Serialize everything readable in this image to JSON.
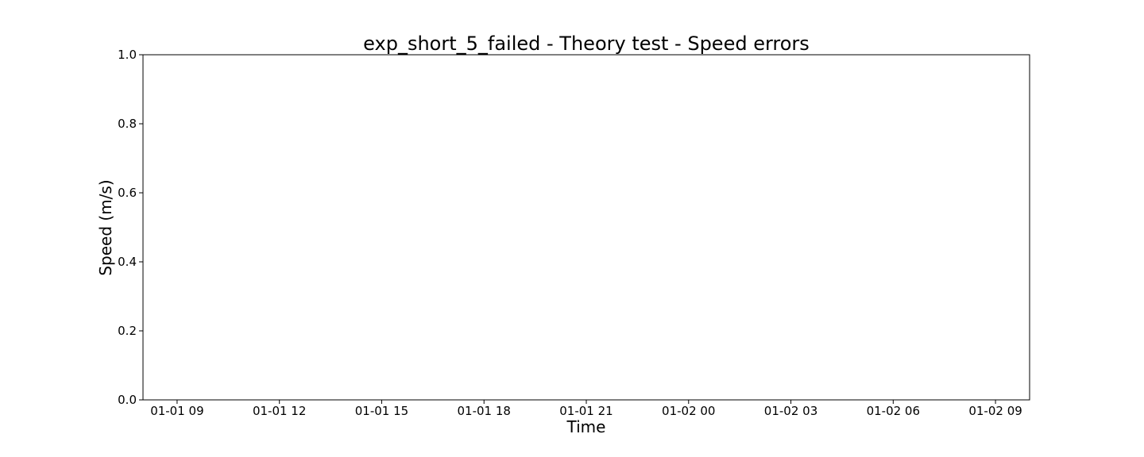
{
  "chart_data": {
    "type": "line",
    "title": "exp_short_5_failed - Theory test - Speed errors",
    "xlabel": "Time",
    "ylabel": "Speed (m/s)",
    "ylim": [
      0.0,
      1.0
    ],
    "xlim": [
      "01-01 08:00",
      "01-02 10:00"
    ],
    "x_ticks": [
      "01-01 09",
      "01-01 12",
      "01-01 15",
      "01-01 18",
      "01-01 21",
      "01-02 00",
      "01-02 03",
      "01-02 06",
      "01-02 09"
    ],
    "x_tick_hours": [
      9,
      12,
      15,
      18,
      21,
      24,
      27,
      30,
      33
    ],
    "y_ticks": [
      "0.0",
      "0.2",
      "0.4",
      "0.6",
      "0.8",
      "1.0"
    ],
    "y_tick_values": [
      0.0,
      0.2,
      0.4,
      0.6,
      0.8,
      1.0
    ],
    "series": [],
    "grid": false,
    "legend": "none"
  }
}
